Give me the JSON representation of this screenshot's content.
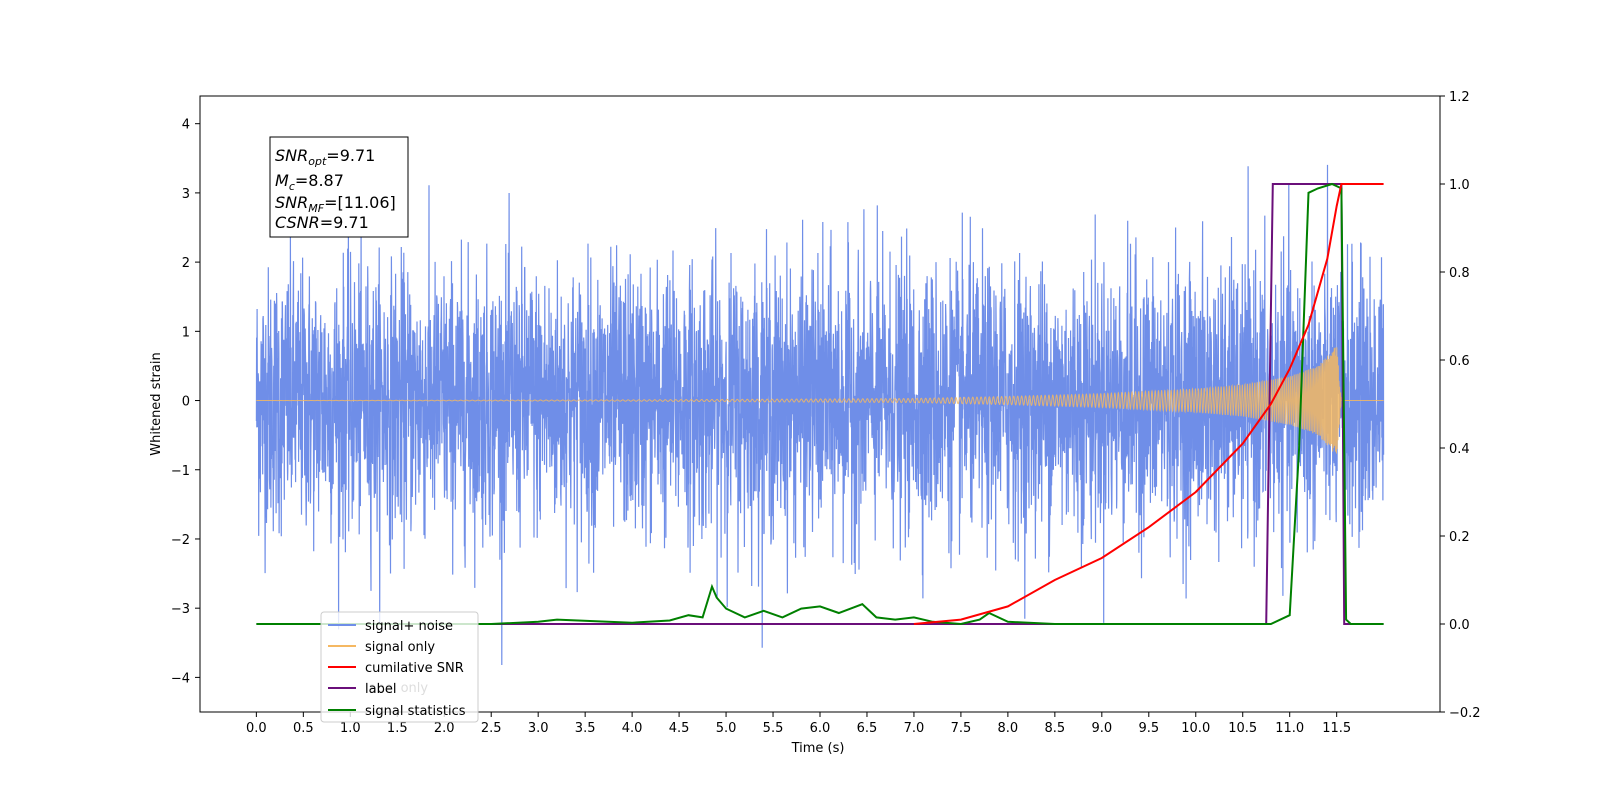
{
  "chart_data": {
    "type": "line",
    "xlabel": "Time (s)",
    "ylabel_left": "Whitened strain",
    "ylabel_right": "",
    "xlim": [
      -0.6,
      12.6
    ],
    "ylim_left": [
      -4.5,
      4.4
    ],
    "ylim_right": [
      -0.2,
      1.2
    ],
    "x_ticks": [
      0.0,
      0.5,
      1.0,
      1.5,
      2.0,
      2.5,
      3.0,
      3.5,
      4.0,
      4.5,
      5.0,
      5.5,
      6.0,
      6.5,
      7.0,
      7.5,
      8.0,
      8.5,
      9.0,
      9.5,
      10.0,
      10.5,
      11.0,
      11.5
    ],
    "x_tick_labels": [
      "0.0",
      "0.5",
      "1.0",
      "1.5",
      "2.0",
      "2.5",
      "3.0",
      "3.5",
      "4.0",
      "4.5",
      "5.0",
      "5.5",
      "6.0",
      "6.5",
      "7.0",
      "7.5",
      "8.0",
      "8.5",
      "9.0",
      "9.5",
      "10.0",
      "10.5",
      "11.0",
      "11.5"
    ],
    "y_left_ticks": [
      -4,
      -3,
      -2,
      -1,
      0,
      1,
      2,
      3,
      4
    ],
    "y_left_tick_labels": [
      "−4",
      "−3",
      "−2",
      "−1",
      "0",
      "1",
      "2",
      "3",
      "4"
    ],
    "y_right_ticks": [
      -0.2,
      0.0,
      0.2,
      0.4,
      0.6,
      0.8,
      1.0,
      1.2
    ],
    "y_right_tick_labels": [
      "−0.2",
      "0.0",
      "0.2",
      "0.4",
      "0.6",
      "0.8",
      "1.0",
      "1.2"
    ],
    "grid": false,
    "legend_position": "bottom-left",
    "series": [
      {
        "name": "signal+ noise",
        "axis": "left",
        "color": "#6f8ee8",
        "description_range": [
          0.0,
          12.0
        ],
        "approx_envelope": [
          -2.0,
          2.0
        ]
      },
      {
        "name": "signal only",
        "axis": "left",
        "color": "#f5b862",
        "x": [
          0.0,
          4.0,
          7.0,
          8.0,
          9.0,
          10.0,
          10.5,
          11.0,
          11.3,
          11.5,
          11.55,
          12.0
        ],
        "amplitude": [
          0.0,
          0.01,
          0.03,
          0.06,
          0.1,
          0.17,
          0.23,
          0.35,
          0.5,
          0.8,
          0.0,
          0.0
        ]
      },
      {
        "name": "cumilative SNR",
        "axis": "right",
        "x": [
          7.0,
          7.5,
          8.0,
          8.5,
          9.0,
          9.5,
          10.0,
          10.5,
          10.8,
          11.0,
          11.2,
          11.4,
          11.5,
          11.55,
          12.0
        ],
        "y": [
          0.0,
          0.01,
          0.04,
          0.1,
          0.15,
          0.22,
          0.3,
          0.41,
          0.5,
          0.58,
          0.68,
          0.83,
          0.95,
          1.0,
          1.0
        ],
        "color": "#ff0000"
      },
      {
        "name": "label",
        "axis": "right",
        "x": [
          0.0,
          10.75,
          10.82,
          11.55,
          11.58,
          12.0
        ],
        "y": [
          0.0,
          0.0,
          1.0,
          1.0,
          0.0,
          0.0
        ],
        "color": "#6a0f7a"
      },
      {
        "name": "label only",
        "axis": "right",
        "color": "#ffffff",
        "hidden": true
      },
      {
        "name": "signal statistics",
        "axis": "right",
        "x": [
          0.0,
          2.5,
          3.0,
          3.2,
          4.0,
          4.4,
          4.6,
          4.75,
          4.85,
          4.9,
          5.0,
          5.2,
          5.4,
          5.6,
          5.8,
          6.0,
          6.2,
          6.45,
          6.6,
          6.8,
          7.0,
          7.2,
          7.5,
          7.7,
          7.8,
          8.0,
          8.5,
          9.0,
          10.8,
          11.0,
          11.1,
          11.2,
          11.3,
          11.45,
          11.55,
          11.6,
          11.65,
          12.0
        ],
        "y": [
          0.0,
          0.0,
          0.005,
          0.01,
          0.003,
          0.008,
          0.02,
          0.015,
          0.085,
          0.06,
          0.035,
          0.015,
          0.03,
          0.015,
          0.035,
          0.04,
          0.025,
          0.045,
          0.015,
          0.01,
          0.015,
          0.005,
          0.0,
          0.01,
          0.025,
          0.005,
          0.0,
          0.0,
          0.0,
          0.02,
          0.4,
          0.98,
          0.99,
          1.0,
          0.99,
          0.01,
          0.0,
          0.0
        ],
        "color": "#008000"
      }
    ],
    "annotations": {
      "snr_opt": "9.71",
      "mc": "8.87",
      "snr_mf": "[11.06]",
      "csnr": "9.71"
    }
  },
  "legend": {
    "items": [
      {
        "label": "signal+ noise",
        "color": "#6f8ee8"
      },
      {
        "label": "signal only",
        "color": "#f5b862"
      },
      {
        "label": "cumilative SNR",
        "color": "#ff0000"
      },
      {
        "label": "label",
        "color": "#6a0f7a"
      },
      {
        "label": "signal statistics",
        "color": "#008000"
      }
    ],
    "obscured_label": "label only"
  },
  "stats_box": {
    "snr_opt_sym": "SNR",
    "snr_opt_sub": "opt",
    "snr_opt_val": "=9.71",
    "mc_sym": "M",
    "mc_sub": "c",
    "mc_val": "=8.87",
    "snr_mf_sym": "SNR",
    "snr_mf_sub": "MF",
    "snr_mf_val": "=[11.06]",
    "csnr_sym": "CSNR",
    "csnr_val": "=9.71"
  }
}
